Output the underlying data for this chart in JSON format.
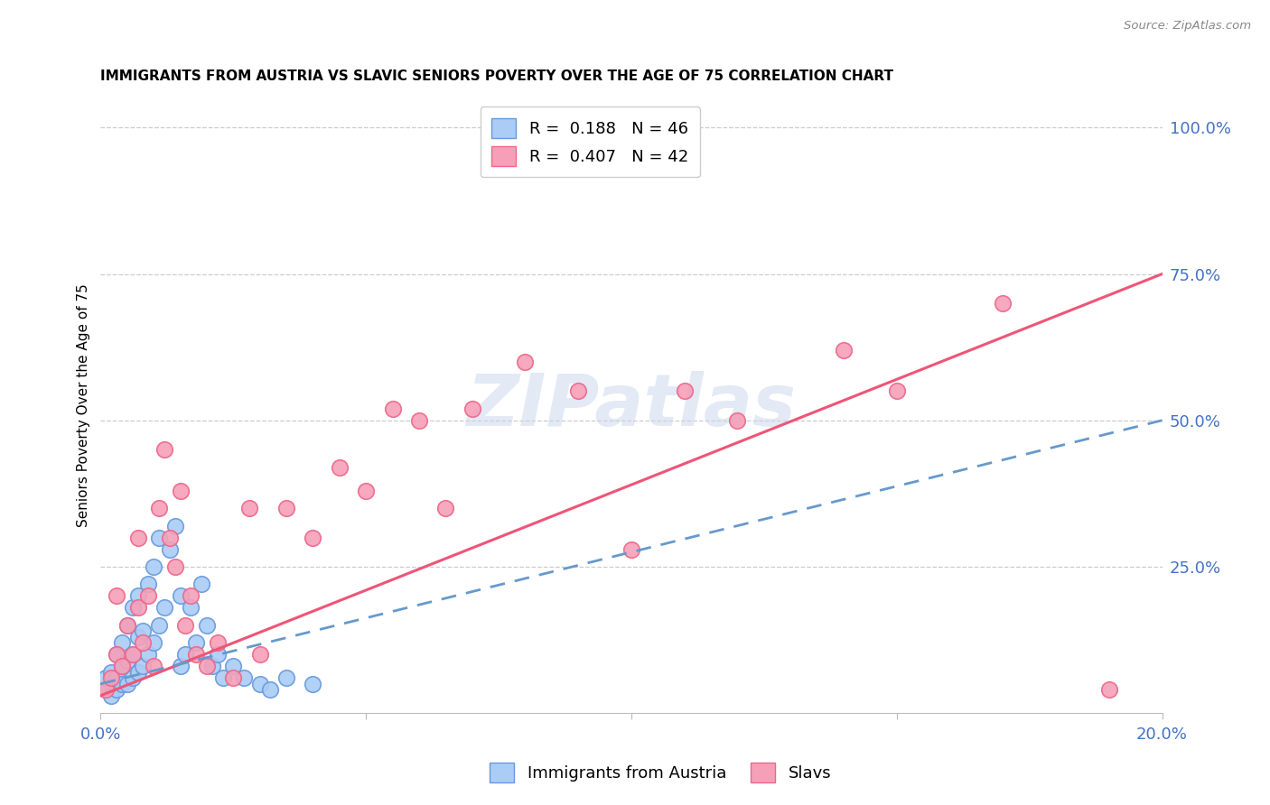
{
  "title": "IMMIGRANTS FROM AUSTRIA VS SLAVIC SENIORS POVERTY OVER THE AGE OF 75 CORRELATION CHART",
  "source": "Source: ZipAtlas.com",
  "ylabel": "Seniors Poverty Over the Age of 75",
  "xlim": [
    0.0,
    0.2
  ],
  "ylim": [
    0.0,
    1.05
  ],
  "xticks": [
    0.0,
    0.05,
    0.1,
    0.15,
    0.2
  ],
  "xticklabels": [
    "0.0%",
    "",
    "",
    "",
    "20.0%"
  ],
  "yticks_right": [
    0.0,
    0.25,
    0.5,
    0.75,
    1.0
  ],
  "ytickslabels_right": [
    "",
    "25.0%",
    "50.0%",
    "75.0%",
    "100.0%"
  ],
  "austria_color": "#aaccf5",
  "slavs_color": "#f5a0b8",
  "austria_edge_color": "#6699dd",
  "slavs_edge_color": "#ee6688",
  "austria_line_color": "#6699cc",
  "slavs_line_color": "#ee5577",
  "legend_r_austria": "R =  0.188",
  "legend_n_austria": "N = 46",
  "legend_r_slavs": "R =  0.407",
  "legend_n_slavs": "N = 42",
  "austria_x": [
    0.001,
    0.001,
    0.002,
    0.002,
    0.003,
    0.003,
    0.003,
    0.004,
    0.004,
    0.004,
    0.005,
    0.005,
    0.005,
    0.006,
    0.006,
    0.006,
    0.007,
    0.007,
    0.007,
    0.008,
    0.008,
    0.009,
    0.009,
    0.01,
    0.01,
    0.011,
    0.011,
    0.012,
    0.013,
    0.014,
    0.015,
    0.015,
    0.016,
    0.017,
    0.018,
    0.019,
    0.02,
    0.021,
    0.022,
    0.023,
    0.025,
    0.027,
    0.03,
    0.032,
    0.035,
    0.04
  ],
  "austria_y": [
    0.04,
    0.06,
    0.03,
    0.07,
    0.04,
    0.06,
    0.1,
    0.05,
    0.08,
    0.12,
    0.05,
    0.09,
    0.15,
    0.06,
    0.1,
    0.18,
    0.07,
    0.13,
    0.2,
    0.08,
    0.14,
    0.1,
    0.22,
    0.12,
    0.25,
    0.15,
    0.3,
    0.18,
    0.28,
    0.32,
    0.2,
    0.08,
    0.1,
    0.18,
    0.12,
    0.22,
    0.15,
    0.08,
    0.1,
    0.06,
    0.08,
    0.06,
    0.05,
    0.04,
    0.06,
    0.05
  ],
  "slavs_x": [
    0.001,
    0.002,
    0.003,
    0.003,
    0.004,
    0.005,
    0.006,
    0.007,
    0.007,
    0.008,
    0.009,
    0.01,
    0.011,
    0.012,
    0.013,
    0.014,
    0.015,
    0.016,
    0.017,
    0.018,
    0.02,
    0.022,
    0.025,
    0.028,
    0.03,
    0.035,
    0.04,
    0.045,
    0.05,
    0.055,
    0.06,
    0.065,
    0.07,
    0.08,
    0.09,
    0.1,
    0.11,
    0.12,
    0.14,
    0.15,
    0.17,
    0.19
  ],
  "slavs_y": [
    0.04,
    0.06,
    0.1,
    0.2,
    0.08,
    0.15,
    0.1,
    0.18,
    0.3,
    0.12,
    0.2,
    0.08,
    0.35,
    0.45,
    0.3,
    0.25,
    0.38,
    0.15,
    0.2,
    0.1,
    0.08,
    0.12,
    0.06,
    0.35,
    0.1,
    0.35,
    0.3,
    0.42,
    0.38,
    0.52,
    0.5,
    0.35,
    0.52,
    0.6,
    0.55,
    0.28,
    0.55,
    0.5,
    0.62,
    0.55,
    0.7,
    0.04
  ],
  "slavs_trendline_x": [
    0.0,
    0.2
  ],
  "slavs_trendline_y": [
    0.03,
    0.75
  ],
  "austria_trendline_x": [
    0.0,
    0.2
  ],
  "austria_trendline_y": [
    0.05,
    0.5
  ],
  "watermark_text": "ZIPatlas",
  "background_color": "#ffffff",
  "grid_color": "#cccccc"
}
